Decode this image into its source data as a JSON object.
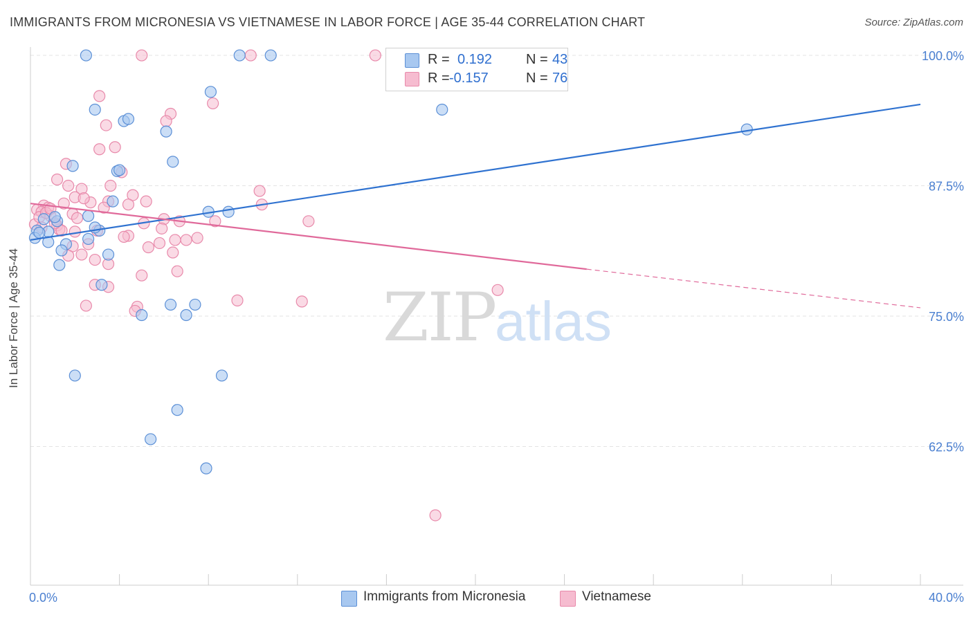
{
  "title": "IMMIGRANTS FROM MICRONESIA VS VIETNAMESE IN LABOR FORCE | AGE 35-44 CORRELATION CHART",
  "source": "Source: ZipAtlas.com",
  "watermark": {
    "zip": "ZIP",
    "atlas": "atlas"
  },
  "legend": {
    "rows": [
      {
        "r_label": "R =",
        "r_value": "0.192",
        "n_label": "N =",
        "n_value": "43"
      },
      {
        "r_label": "R =",
        "r_value": "-0.157",
        "n_label": "N =",
        "n_value": "76"
      }
    ]
  },
  "colors": {
    "blue_fill": "#a8c8f0",
    "blue_stroke": "#5b8fd6",
    "blue_line": "#2f72d0",
    "pink_fill": "#f6bcd0",
    "pink_stroke": "#e889aa",
    "pink_line": "#e0699a",
    "tick_text": "#4a7fd0",
    "grid": "#e3e3e3"
  },
  "chart_data": {
    "type": "scatter",
    "title": "IMMIGRANTS FROM MICRONESIA VS VIETNAMESE IN LABOR FORCE | AGE 35-44 CORRELATION CHART",
    "xlabel": "",
    "ylabel": "In Labor Force | Age 35-44",
    "xlim": [
      0,
      40
    ],
    "ylim": [
      49.2,
      100.8
    ],
    "x_tick_labels": [
      "0.0%",
      "40.0%"
    ],
    "y_ticks": [
      100,
      87.5,
      75,
      62.5
    ],
    "y_tick_labels": [
      "100.0%",
      "87.5%",
      "75.0%",
      "62.5%"
    ],
    "grid": true,
    "series": [
      {
        "name": "Immigrants from Micronesia",
        "color": "#a8c8f0",
        "points": [
          [
            2.5,
            100
          ],
          [
            9.4,
            100
          ],
          [
            10.8,
            100
          ],
          [
            8.1,
            96.5
          ],
          [
            2.9,
            94.8
          ],
          [
            4.2,
            93.7
          ],
          [
            4.4,
            93.9
          ],
          [
            6.1,
            92.7
          ],
          [
            18.5,
            94.8
          ],
          [
            32.2,
            92.9
          ],
          [
            6.4,
            89.8
          ],
          [
            1.9,
            89.4
          ],
          [
            3.9,
            88.9
          ],
          [
            4.0,
            89.0
          ],
          [
            3.7,
            86.0
          ],
          [
            8.0,
            85.0
          ],
          [
            8.9,
            85.0
          ],
          [
            2.6,
            84.6
          ],
          [
            3.1,
            83.2
          ],
          [
            0.3,
            83.2
          ],
          [
            0.8,
            83.1
          ],
          [
            1.2,
            84.1
          ],
          [
            2.9,
            83.5
          ],
          [
            0.2,
            82.5
          ],
          [
            0.8,
            82.1
          ],
          [
            1.6,
            81.9
          ],
          [
            1.4,
            81.3
          ],
          [
            2.6,
            82.4
          ],
          [
            3.5,
            80.9
          ],
          [
            1.3,
            79.9
          ],
          [
            3.2,
            78.0
          ],
          [
            6.3,
            76.1
          ],
          [
            7.4,
            76.1
          ],
          [
            5.0,
            75.1
          ],
          [
            7.0,
            75.1
          ],
          [
            2.0,
            69.3
          ],
          [
            8.6,
            69.3
          ],
          [
            6.6,
            66.0
          ],
          [
            5.4,
            63.2
          ],
          [
            7.9,
            60.4
          ],
          [
            0.4,
            83.0
          ],
          [
            1.1,
            84.5
          ],
          [
            0.6,
            84.3
          ]
        ]
      },
      {
        "name": "Vietnamese",
        "color": "#f6bcd0",
        "points": [
          [
            5.0,
            100
          ],
          [
            9.9,
            100
          ],
          [
            15.5,
            100
          ],
          [
            3.1,
            96.1
          ],
          [
            8.2,
            95.4
          ],
          [
            6.3,
            94.4
          ],
          [
            6.1,
            93.7
          ],
          [
            3.4,
            93.3
          ],
          [
            3.8,
            91.2
          ],
          [
            3.1,
            91.0
          ],
          [
            1.6,
            89.6
          ],
          [
            4.1,
            88.8
          ],
          [
            1.2,
            88.1
          ],
          [
            3.6,
            87.5
          ],
          [
            1.7,
            87.5
          ],
          [
            2.3,
            87.2
          ],
          [
            10.3,
            87.0
          ],
          [
            4.6,
            86.6
          ],
          [
            2.0,
            86.4
          ],
          [
            5.2,
            86.0
          ],
          [
            3.5,
            86.0
          ],
          [
            2.7,
            85.9
          ],
          [
            4.4,
            85.7
          ],
          [
            1.5,
            85.8
          ],
          [
            10.4,
            85.7
          ],
          [
            0.6,
            85.6
          ],
          [
            0.8,
            85.4
          ],
          [
            3.3,
            85.4
          ],
          [
            0.3,
            85.2
          ],
          [
            0.5,
            85.0
          ],
          [
            1.9,
            84.8
          ],
          [
            0.9,
            84.6
          ],
          [
            6.0,
            84.3
          ],
          [
            8.3,
            84.1
          ],
          [
            12.5,
            84.1
          ],
          [
            6.7,
            84.1
          ],
          [
            1.2,
            83.7
          ],
          [
            0.2,
            83.8
          ],
          [
            5.1,
            83.9
          ],
          [
            1.3,
            83.3
          ],
          [
            1.4,
            83.2
          ],
          [
            2.0,
            83.1
          ],
          [
            5.9,
            83.4
          ],
          [
            4.4,
            82.7
          ],
          [
            4.2,
            82.6
          ],
          [
            6.5,
            82.3
          ],
          [
            7.0,
            82.3
          ],
          [
            5.8,
            82.0
          ],
          [
            2.6,
            81.9
          ],
          [
            1.9,
            81.7
          ],
          [
            5.3,
            81.6
          ],
          [
            7.5,
            82.5
          ],
          [
            6.4,
            81.1
          ],
          [
            2.3,
            80.9
          ],
          [
            1.7,
            80.8
          ],
          [
            2.9,
            80.4
          ],
          [
            3.5,
            80.0
          ],
          [
            6.6,
            79.3
          ],
          [
            5.0,
            78.9
          ],
          [
            2.9,
            78.0
          ],
          [
            3.5,
            77.8
          ],
          [
            21.0,
            77.5
          ],
          [
            9.3,
            76.5
          ],
          [
            12.2,
            76.4
          ],
          [
            2.5,
            76.0
          ],
          [
            4.8,
            75.9
          ],
          [
            4.7,
            75.5
          ],
          [
            18.2,
            55.9
          ],
          [
            0.4,
            84.5
          ],
          [
            0.7,
            84.9
          ],
          [
            0.9,
            85.3
          ],
          [
            1.1,
            83.9
          ],
          [
            0.5,
            83.5
          ],
          [
            2.1,
            84.4
          ],
          [
            2.4,
            86.3
          ],
          [
            3.0,
            83.2
          ]
        ]
      }
    ],
    "trend_lines": [
      {
        "series": "Immigrants from Micronesia",
        "x": [
          0,
          40
        ],
        "y": [
          82.3,
          95.3
        ],
        "style": "solid"
      },
      {
        "series": "Vietnamese",
        "x": [
          0,
          25
        ],
        "y": [
          85.8,
          79.5
        ],
        "style": "solid"
      },
      {
        "series": "Vietnamese",
        "x": [
          25,
          40
        ],
        "y": [
          79.5,
          75.8
        ],
        "style": "dashed"
      }
    ]
  }
}
